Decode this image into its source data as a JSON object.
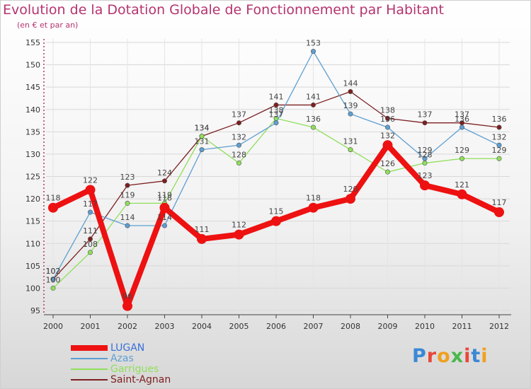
{
  "title": "Evolution de la Dotation Globale de Fonctionnement par Habitant",
  "subtitle": "(en € et par an)",
  "logo_text": "Proxiti",
  "colors": {
    "title": "#b5336f",
    "lugan": "#ee1111",
    "azas": "#5d9fd2",
    "garrigues": "#8fdf5b",
    "saint_agnan": "#7d1f20",
    "axis": "#b5336f"
  },
  "chart_data": {
    "type": "line",
    "title": "Evolution de la Dotation Globale de Fonctionnement par Habitant",
    "subtitle": "(en € et par an)",
    "xlabel": "",
    "ylabel": "",
    "x": [
      "2000",
      "2001",
      "2002",
      "2003",
      "2004",
      "2005",
      "2006",
      "2007",
      "2008",
      "2009",
      "2010",
      "2011",
      "2012"
    ],
    "ylim": [
      95,
      155
    ],
    "yticks": [
      95,
      100,
      105,
      110,
      115,
      120,
      125,
      130,
      135,
      140,
      145,
      150,
      155
    ],
    "grid": true,
    "legend_position": "bottom-left",
    "series": [
      {
        "name": "LUGAN",
        "color": "#ee1111",
        "width": 8,
        "marker": 7,
        "values": [
          118,
          122,
          96,
          118,
          111,
          112,
          115,
          118,
          120,
          132,
          123,
          121,
          117
        ]
      },
      {
        "name": "Azas",
        "color": "#5d9fd2",
        "width": 1.3,
        "marker": 3.2,
        "values": [
          102,
          117,
          114,
          114,
          131,
          132,
          137,
          153,
          139,
          136,
          129,
          136,
          132
        ]
      },
      {
        "name": "Garrigues",
        "color": "#8fdf5b",
        "width": 1.3,
        "marker": 3.2,
        "values": [
          100,
          108,
          119,
          119,
          134,
          128,
          138,
          136,
          131,
          126,
          128,
          129,
          129
        ]
      },
      {
        "name": "Saint-Agnan",
        "color": "#7d1f20",
        "width": 1.3,
        "marker": 3.2,
        "values": [
          102,
          111,
          123,
          124,
          134,
          137,
          141,
          141,
          144,
          138,
          137,
          137,
          136
        ]
      }
    ]
  }
}
